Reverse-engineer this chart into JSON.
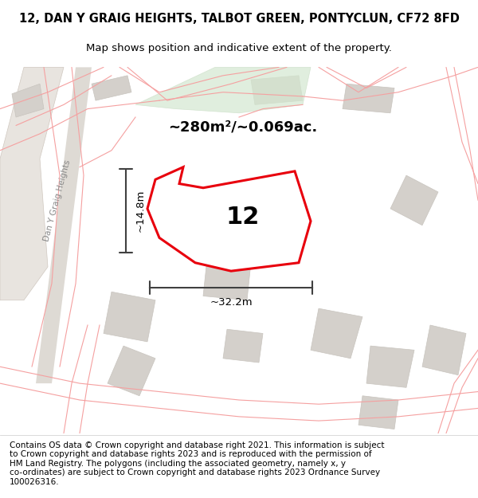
{
  "title_line1": "12, DAN Y GRAIG HEIGHTS, TALBOT GREEN, PONTYCLUN, CF72 8FD",
  "title_line2": "Map shows position and indicative extent of the property.",
  "area_text": "~280m²/~0.069ac.",
  "label_number": "12",
  "dim_width": "~32.2m",
  "dim_height": "~14.8m",
  "street_label": "Dan Y Graig Heights",
  "footer_text_wrapped": "Contains OS data © Crown copyright and database right 2021. This information is subject\nto Crown copyright and database rights 2023 and is reproduced with the permission of\nHM Land Registry. The polygons (including the associated geometry, namely x, y\nco-ordinates) are subject to Crown copyright and database rights 2023 Ordnance Survey\n100026316.",
  "bg_color": "#f0ede8",
  "map_bg": "#ffffff",
  "property_fill": "#ffffff",
  "property_edge": "#e8000d",
  "building_fill": "#d4d0cb",
  "building_edge": "#c8c4be",
  "road_line_color": "#f5a0a0",
  "street_color": "#aaaaaa",
  "title_fontsize": 10.5,
  "subtitle_fontsize": 9.5,
  "footer_fontsize": 7.5
}
